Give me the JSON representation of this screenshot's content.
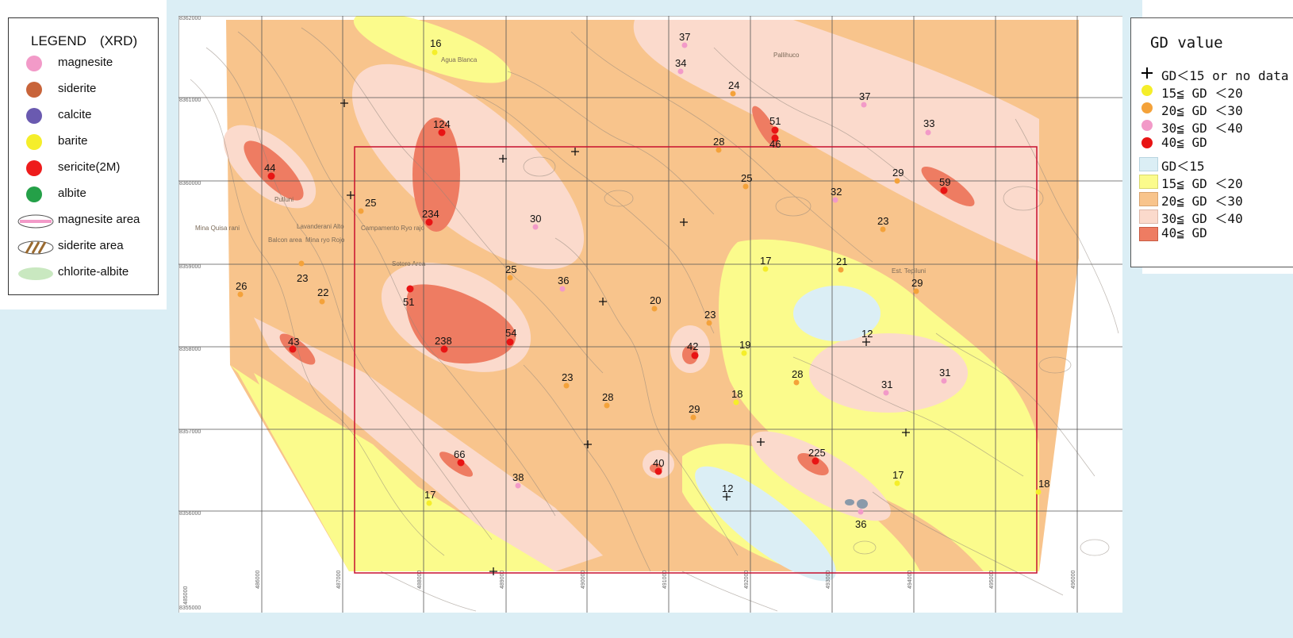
{
  "legend_xrd": {
    "title": "LEGEND　(XRD)",
    "items": [
      {
        "label": "magnesite",
        "color": "#f29ac8",
        "icon": "circle"
      },
      {
        "label": "siderite",
        "color": "#c8643a",
        "icon": "circle"
      },
      {
        "label": "calcite",
        "color": "#6a5ab0",
        "icon": "circle"
      },
      {
        "label": "barite",
        "color": "#f5ee2a",
        "icon": "circle"
      },
      {
        "label": "sericite(2M)",
        "color": "#ee1c1c",
        "icon": "circle"
      },
      {
        "label": "albite",
        "color": "#24a048",
        "icon": "circle"
      },
      {
        "label": "magnesite area",
        "color": "#f29ac8",
        "icon": "ellipse-pink"
      },
      {
        "label": "siderite area",
        "color": "#9a6a30",
        "icon": "ellipse-hatched"
      },
      {
        "label": "chlorite-albite",
        "color": "#c9e8c0",
        "icon": "ellipse-green"
      }
    ]
  },
  "legend_gd": {
    "title": "GD value",
    "point_items": [
      {
        "label": "GD＜15 or no data",
        "symbol": "cross",
        "color": "#000000"
      },
      {
        "label": "15≦ GD ＜20",
        "symbol": "dot",
        "color": "#f5ee2a"
      },
      {
        "label": "20≦ GD ＜30",
        "symbol": "dot",
        "color": "#f4a23a"
      },
      {
        "label": "30≦ GD ＜40",
        "symbol": "dot",
        "color": "#f29ac8"
      },
      {
        "label": "40≦ GD",
        "symbol": "dot",
        "color": "#e81414"
      }
    ],
    "area_items": [
      {
        "label": "GD＜15",
        "color": "#dbeef5"
      },
      {
        "label": "15≦ GD ＜20",
        "color": "#fbfb8c"
      },
      {
        "label": "20≦ GD ＜30",
        "color": "#f8c48c"
      },
      {
        "label": "30≦ GD ＜40",
        "color": "#fbdacc"
      },
      {
        "label": "40≦ GD",
        "color": "#ee7c62"
      }
    ]
  },
  "map": {
    "x_ticks": [
      "485000",
      "486000",
      "487000",
      "488000",
      "489000",
      "490000",
      "491000",
      "492000",
      "493000",
      "494000",
      "495000",
      "496000"
    ],
    "y_ticks": [
      "8362000",
      "8361000",
      "8360000",
      "8359000",
      "8358000",
      "8357000",
      "8356000",
      "8355000"
    ],
    "place_names": [
      "Agua Blanca",
      "Pallihuco",
      "Pulluni",
      "Lavanderani Alto",
      "Campamento Ryo rajo",
      "Mina Quisa rani",
      "Balcon area",
      "Mina ryo Rojo",
      "Sotero Area",
      "Est. Tepiluni"
    ],
    "samples": [
      {
        "value": "16",
        "cls": "15-20"
      },
      {
        "value": "37",
        "cls": "30-40"
      },
      {
        "value": "34",
        "cls": "30-40"
      },
      {
        "value": "24",
        "cls": "20-30"
      },
      {
        "value": "37",
        "cls": "30-40"
      },
      {
        "value": "33",
        "cls": "30-40"
      },
      {
        "value": "51",
        "cls": "40+"
      },
      {
        "value": "46",
        "cls": "40+"
      },
      {
        "value": "124",
        "cls": "40+"
      },
      {
        "value": "28",
        "cls": "20-30"
      },
      {
        "value": "44",
        "cls": "40+"
      },
      {
        "value": "25",
        "cls": "20-30"
      },
      {
        "value": "29",
        "cls": "20-30"
      },
      {
        "value": "59",
        "cls": "40+"
      },
      {
        "value": "25",
        "cls": "20-30"
      },
      {
        "value": "32",
        "cls": "30-40"
      },
      {
        "value": "234",
        "cls": "40+"
      },
      {
        "value": "30",
        "cls": "30-40"
      },
      {
        "value": "23",
        "cls": "20-30"
      },
      {
        "value": "17",
        "cls": "15-20"
      },
      {
        "value": "21",
        "cls": "20-30"
      },
      {
        "value": "26",
        "cls": "20-30"
      },
      {
        "value": "23",
        "cls": "20-30"
      },
      {
        "value": "22",
        "cls": "20-30"
      },
      {
        "value": "25",
        "cls": "20-30"
      },
      {
        "value": "36",
        "cls": "30-40"
      },
      {
        "value": "51",
        "cls": "40+"
      },
      {
        "value": "20",
        "cls": "20-30"
      },
      {
        "value": "29",
        "cls": "20-30"
      },
      {
        "value": "23",
        "cls": "20-30"
      },
      {
        "value": "43",
        "cls": "40+"
      },
      {
        "value": "238",
        "cls": "40+"
      },
      {
        "value": "54",
        "cls": "40+"
      },
      {
        "value": "42",
        "cls": "40+"
      },
      {
        "value": "19",
        "cls": "15-20"
      },
      {
        "value": "12",
        "cls": "lt15"
      },
      {
        "value": "23",
        "cls": "20-30"
      },
      {
        "value": "28",
        "cls": "20-30"
      },
      {
        "value": "28",
        "cls": "20-30"
      },
      {
        "value": "18",
        "cls": "15-20"
      },
      {
        "value": "29",
        "cls": "20-30"
      },
      {
        "value": "31",
        "cls": "30-40"
      },
      {
        "value": "31",
        "cls": "30-40"
      },
      {
        "value": "66",
        "cls": "40+"
      },
      {
        "value": "40",
        "cls": "40+"
      },
      {
        "value": "225",
        "cls": "40+"
      },
      {
        "value": "38",
        "cls": "30-40"
      },
      {
        "value": "12",
        "cls": "lt15"
      },
      {
        "value": "17",
        "cls": "15-20"
      },
      {
        "value": "18",
        "cls": "15-20"
      },
      {
        "value": "17",
        "cls": "15-20"
      },
      {
        "value": "36",
        "cls": "30-40"
      }
    ]
  }
}
